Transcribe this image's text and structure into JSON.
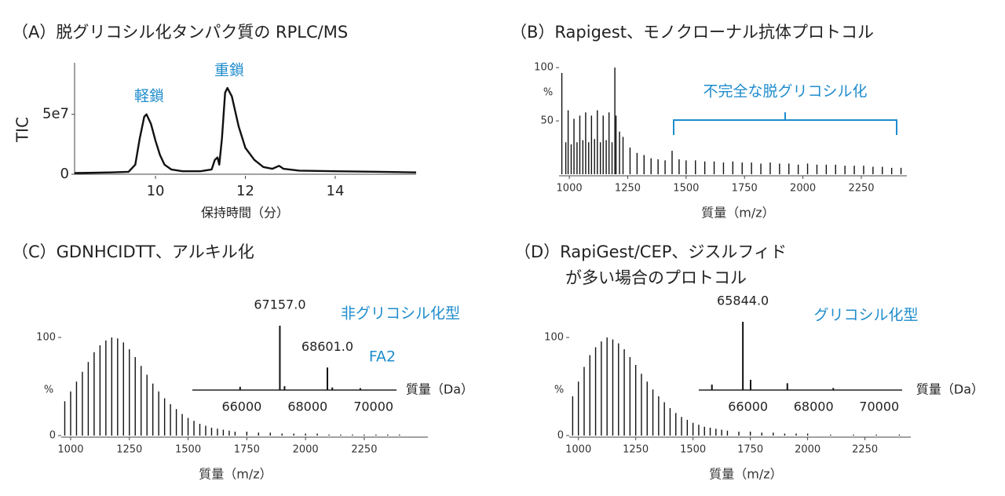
{
  "chart_data": [
    {
      "type": "line",
      "title": "（A）脱グリコシル化タンパク質の RPLC/MS",
      "xlabel": "保持時間（分）",
      "ylabel": "TIC",
      "annotations": [
        "軽鎖",
        "重鎖"
      ],
      "xlim": [
        8.2,
        15.8
      ],
      "xticks": [
        10,
        12,
        14
      ],
      "ylim": [
        0,
        93000000
      ],
      "yticks": [
        0,
        {
          "value": 50000000,
          "label": "5e7"
        }
      ],
      "color": "#111111",
      "x": [
        8.2,
        9.0,
        9.4,
        9.55,
        9.65,
        9.75,
        9.8,
        9.9,
        10.0,
        10.1,
        10.2,
        10.35,
        10.6,
        11.0,
        11.25,
        11.32,
        11.38,
        11.42,
        11.48,
        11.55,
        11.6,
        11.7,
        11.85,
        12.0,
        12.2,
        12.4,
        12.6,
        12.75,
        12.85,
        13.2,
        14.0,
        15.0,
        15.8
      ],
      "values": [
        1000000,
        1500000,
        2000000,
        8000000,
        30000000,
        48000000,
        50000000,
        42000000,
        28000000,
        16000000,
        8000000,
        4000000,
        2500000,
        2500000,
        4000000,
        12000000,
        14000000,
        8000000,
        30000000,
        68000000,
        72000000,
        65000000,
        40000000,
        22000000,
        12000000,
        6000000,
        4500000,
        7000000,
        4500000,
        3000000,
        2500000,
        2000000,
        1500000
      ]
    },
    {
      "type": "stem",
      "title": "（B）Rapigest、モノクローナル抗体プロトコル",
      "xlabel": "質量（m/z）",
      "ylabel": "%",
      "annotations": [
        "不完全な脱グリコシル化"
      ],
      "xlim": [
        956,
        2445
      ],
      "xticks": [
        1000,
        1250,
        1500,
        1750,
        2000,
        2250
      ],
      "ylim": [
        0,
        106
      ],
      "yticks": [
        50,
        100
      ],
      "color": "#111111",
      "x": [
        968,
        985,
        995,
        1008,
        1020,
        1033,
        1045,
        1058,
        1070,
        1083,
        1095,
        1108,
        1120,
        1133,
        1145,
        1158,
        1170,
        1183,
        1195,
        1200,
        1215,
        1230,
        1260,
        1290,
        1320,
        1350,
        1380,
        1410,
        1440,
        1470,
        1500,
        1540,
        1580,
        1620,
        1660,
        1700,
        1740,
        1780,
        1820,
        1860,
        1900,
        1940,
        1980,
        2020,
        2060,
        2100,
        2140,
        2180,
        2220,
        2260,
        2300,
        2340,
        2380,
        2420
      ],
      "values": [
        95,
        30,
        60,
        28,
        52,
        30,
        55,
        32,
        58,
        30,
        55,
        33,
        60,
        30,
        55,
        32,
        58,
        30,
        100,
        55,
        40,
        35,
        25,
        20,
        18,
        15,
        14,
        13,
        22,
        14,
        13,
        13,
        12,
        12,
        11,
        12,
        11,
        11,
        10,
        11,
        10,
        10,
        9,
        10,
        9,
        9,
        9,
        8,
        8,
        8,
        7,
        7,
        6,
        6
      ]
    },
    {
      "type": "stem",
      "title": "（C）GDNHCIDTT、アルキル化",
      "xlabel": "質量（m/z）",
      "ylabel": "%",
      "xlim": [
        960,
        2521
      ],
      "xticks": [
        1000,
        1250,
        1500,
        1750,
        2000,
        2250
      ],
      "ylim": [
        0,
        100
      ],
      "yticks": [
        0,
        100
      ],
      "color": "#111111",
      "x": [
        975,
        1000,
        1025,
        1050,
        1075,
        1100,
        1125,
        1150,
        1175,
        1200,
        1225,
        1250,
        1275,
        1300,
        1325,
        1350,
        1375,
        1400,
        1425,
        1450,
        1475,
        1500,
        1525,
        1550,
        1575,
        1600,
        1625,
        1650,
        1675,
        1700,
        1750,
        1800,
        1850,
        1900,
        1950,
        2000,
        2050,
        2100,
        2150,
        2200,
        2250,
        2300,
        2350,
        2400
      ],
      "values": [
        35,
        45,
        55,
        65,
        75,
        85,
        92,
        97,
        100,
        99,
        95,
        88,
        80,
        71,
        62,
        53,
        45,
        38,
        32,
        27,
        22,
        18,
        15,
        12,
        10,
        8,
        7,
        6,
        5,
        4,
        4,
        3,
        3,
        2,
        2,
        2,
        2,
        1,
        1,
        1,
        1,
        1,
        1,
        1
      ],
      "inset": {
        "type": "stem",
        "xlabel": "質量（Da）",
        "annotations": [
          "非グリコシル化型",
          "FA2"
        ],
        "xlim": [
          64500,
          70700
        ],
        "xticks": [
          66000,
          68000,
          70000
        ],
        "ylim": [
          0,
          100
        ],
        "peaks": [
          {
            "x": 65950,
            "value": 5
          },
          {
            "x": 67157,
            "value": 100,
            "label": "67157.0"
          },
          {
            "x": 67300,
            "value": 6
          },
          {
            "x": 68601,
            "value": 35,
            "label": "68601.0"
          },
          {
            "x": 68750,
            "value": 4
          },
          {
            "x": 69600,
            "value": 3
          }
        ]
      }
    },
    {
      "type": "stem",
      "title": [
        "（D）RapiGest/CEP、ジスルフィド",
        "が多い場合のプロトコル"
      ],
      "xlabel": "質量（m/z）",
      "ylabel": "%",
      "xlim": [
        960,
        2450
      ],
      "xticks": [
        1000,
        1250,
        1500,
        1750,
        2000,
        2250
      ],
      "ylim": [
        0,
        100
      ],
      "yticks": [
        0,
        100
      ],
      "color": "#111111",
      "x": [
        975,
        1000,
        1025,
        1050,
        1075,
        1100,
        1125,
        1150,
        1175,
        1200,
        1225,
        1250,
        1275,
        1300,
        1325,
        1350,
        1375,
        1400,
        1425,
        1450,
        1475,
        1500,
        1525,
        1550,
        1575,
        1600,
        1625,
        1650,
        1700,
        1750,
        1800,
        1850,
        1900,
        1950,
        2000,
        2100,
        2200,
        2300,
        2400
      ],
      "values": [
        40,
        55,
        70,
        82,
        90,
        96,
        100,
        98,
        94,
        88,
        80,
        72,
        63,
        55,
        47,
        40,
        34,
        28,
        23,
        19,
        16,
        13,
        11,
        9,
        8,
        7,
        6,
        5,
        4,
        4,
        3,
        3,
        2,
        2,
        2,
        1,
        1,
        1,
        1
      ],
      "inset": {
        "type": "stem",
        "xlabel": "質量（Da）",
        "annotations": [
          "グリコシル化型"
        ],
        "xlim": [
          64500,
          70700
        ],
        "xticks": [
          66000,
          68000,
          70000
        ],
        "ylim": [
          0,
          100
        ],
        "peaks": [
          {
            "x": 64900,
            "value": 8
          },
          {
            "x": 65844,
            "value": 100,
            "label": "65844.0"
          },
          {
            "x": 66080,
            "value": 15
          },
          {
            "x": 67200,
            "value": 10
          },
          {
            "x": 68600,
            "value": 3
          }
        ]
      }
    }
  ]
}
